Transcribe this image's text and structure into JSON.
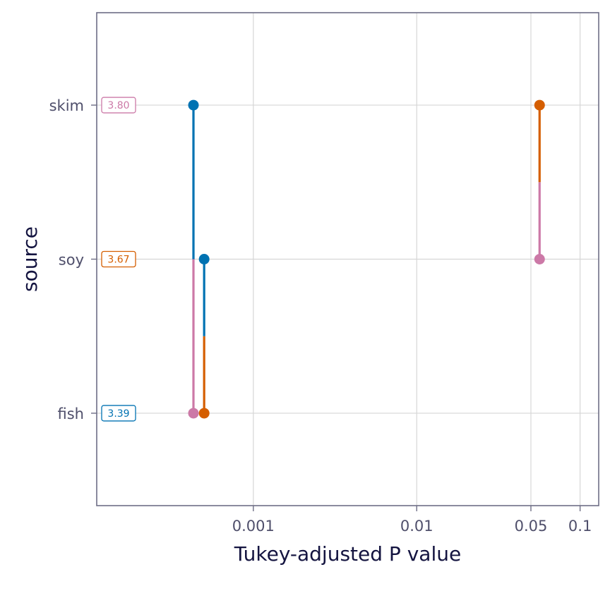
{
  "chart_data": {
    "type": "pairwise-pvalue-plot",
    "xlabel": "Tukey-adjusted P value",
    "ylabel": "source",
    "x_scale": "log10",
    "xlim": [
      0.00011,
      0.13
    ],
    "x_ticks": [
      {
        "value": 0.001,
        "label": "0.001"
      },
      {
        "value": 0.01,
        "label": "0.01"
      },
      {
        "value": 0.05,
        "label": "0.05"
      },
      {
        "value": 0.1,
        "label": "0.1"
      }
    ],
    "categories": [
      "fish",
      "soy",
      "skim"
    ],
    "grid": true,
    "emmeans": [
      {
        "level": "skim",
        "label": "3.80",
        "color": "#cc79a7"
      },
      {
        "level": "soy",
        "label": "3.67",
        "color": "#d55e00"
      },
      {
        "level": "fish",
        "label": "3.39",
        "color": "#0072b2"
      }
    ],
    "comparisons": [
      {
        "from": "fish",
        "to": "skim",
        "p_value": 0.00043
      },
      {
        "from": "fish",
        "to": "soy",
        "p_value": 0.0005
      },
      {
        "from": "soy",
        "to": "skim",
        "p_value": 0.0565
      }
    ]
  }
}
